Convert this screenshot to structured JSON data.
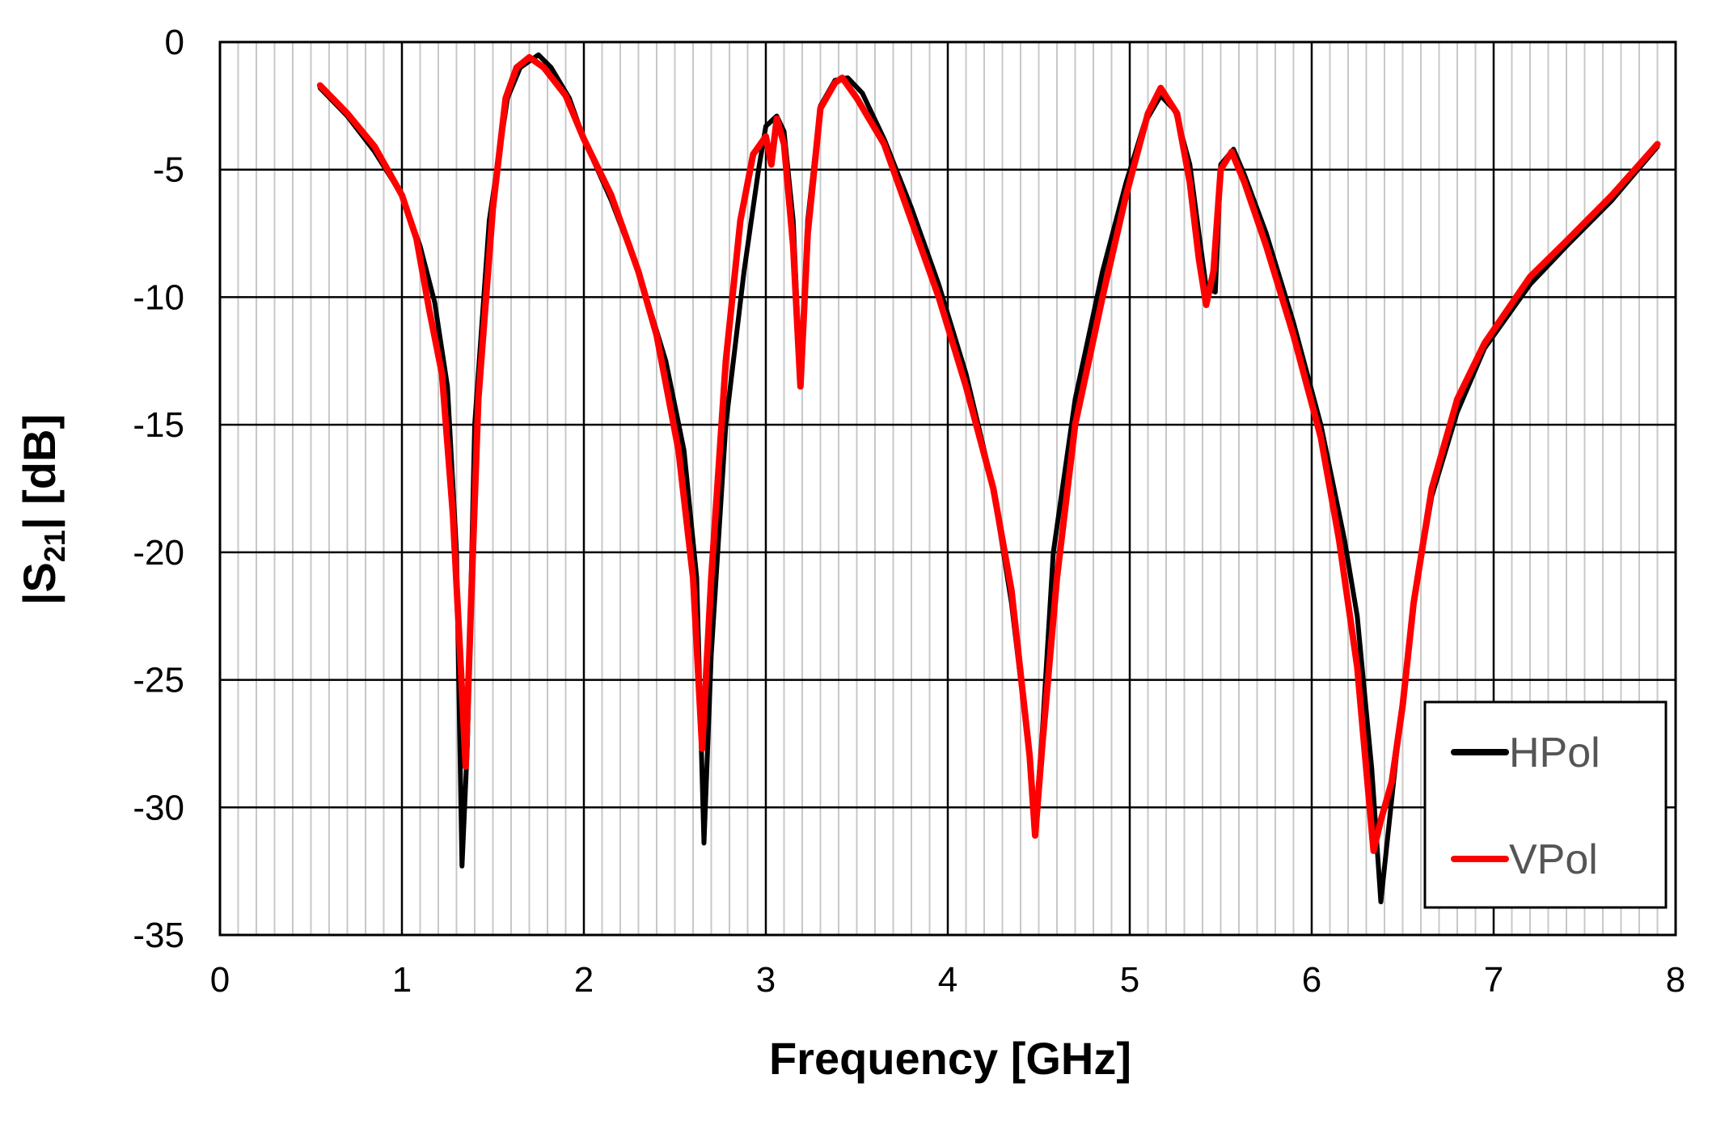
{
  "chart_data": {
    "type": "line",
    "xlabel": "Frequency [GHz]",
    "ylabel": {
      "prefix": "|S",
      "subscript": "21",
      "suffix": "| [dB]"
    },
    "xlim": [
      0,
      8
    ],
    "ylim": [
      -35,
      0
    ],
    "xticks": [
      "0",
      "1",
      "2",
      "3",
      "4",
      "5",
      "6",
      "7",
      "8"
    ],
    "yticks": [
      "0",
      "-5",
      "-10",
      "-15",
      "-20",
      "-25",
      "-30",
      "-35"
    ],
    "grid": true,
    "legend_position": "bottom-right",
    "series": [
      {
        "name": "HPol",
        "color": "#000000",
        "points": [
          [
            0.55,
            -1.8
          ],
          [
            0.7,
            -2.9
          ],
          [
            0.85,
            -4.3
          ],
          [
            1.0,
            -6.0
          ],
          [
            1.1,
            -8.0
          ],
          [
            1.18,
            -10.2
          ],
          [
            1.25,
            -13.5
          ],
          [
            1.3,
            -20.0
          ],
          [
            1.33,
            -32.3
          ],
          [
            1.36,
            -27.5
          ],
          [
            1.4,
            -15.0
          ],
          [
            1.48,
            -7.0
          ],
          [
            1.58,
            -2.2
          ],
          [
            1.65,
            -1.0
          ],
          [
            1.75,
            -0.5
          ],
          [
            1.82,
            -1.0
          ],
          [
            1.92,
            -2.2
          ],
          [
            2.0,
            -3.8
          ],
          [
            2.15,
            -6.2
          ],
          [
            2.3,
            -9.0
          ],
          [
            2.45,
            -12.5
          ],
          [
            2.55,
            -16.0
          ],
          [
            2.62,
            -21.0
          ],
          [
            2.66,
            -31.4
          ],
          [
            2.7,
            -24.0
          ],
          [
            2.78,
            -15.0
          ],
          [
            2.88,
            -9.0
          ],
          [
            2.96,
            -5.0
          ],
          [
            3.0,
            -3.3
          ],
          [
            3.06,
            -2.9
          ],
          [
            3.1,
            -3.5
          ],
          [
            3.15,
            -7.0
          ],
          [
            3.19,
            -13.3
          ],
          [
            3.23,
            -7.0
          ],
          [
            3.3,
            -2.5
          ],
          [
            3.38,
            -1.5
          ],
          [
            3.45,
            -1.4
          ],
          [
            3.53,
            -2.0
          ],
          [
            3.65,
            -3.8
          ],
          [
            3.8,
            -6.5
          ],
          [
            3.95,
            -9.5
          ],
          [
            4.1,
            -13.0
          ],
          [
            4.25,
            -17.5
          ],
          [
            4.35,
            -22.0
          ],
          [
            4.45,
            -28.0
          ],
          [
            4.48,
            -30.8
          ],
          [
            4.52,
            -27.0
          ],
          [
            4.58,
            -20.0
          ],
          [
            4.7,
            -14.0
          ],
          [
            4.85,
            -9.0
          ],
          [
            4.98,
            -5.5
          ],
          [
            5.08,
            -3.2
          ],
          [
            5.17,
            -2.1
          ],
          [
            5.25,
            -2.7
          ],
          [
            5.33,
            -4.8
          ],
          [
            5.38,
            -7.5
          ],
          [
            5.42,
            -9.6
          ],
          [
            5.47,
            -9.8
          ],
          [
            5.5,
            -4.8
          ],
          [
            5.57,
            -4.2
          ],
          [
            5.63,
            -5.2
          ],
          [
            5.75,
            -7.5
          ],
          [
            5.9,
            -11.0
          ],
          [
            6.05,
            -15.0
          ],
          [
            6.18,
            -19.5
          ],
          [
            6.25,
            -22.5
          ],
          [
            6.33,
            -28.5
          ],
          [
            6.38,
            -33.7
          ],
          [
            6.42,
            -31.0
          ],
          [
            6.48,
            -27.0
          ],
          [
            6.56,
            -22.0
          ],
          [
            6.66,
            -17.8
          ],
          [
            6.8,
            -14.5
          ],
          [
            6.95,
            -12.0
          ],
          [
            7.2,
            -9.5
          ],
          [
            7.4,
            -8.0
          ],
          [
            7.65,
            -6.2
          ],
          [
            7.9,
            -4.1
          ]
        ]
      },
      {
        "name": "VPol",
        "color": "#ff0000",
        "points": [
          [
            0.55,
            -1.7
          ],
          [
            0.7,
            -2.8
          ],
          [
            0.85,
            -4.1
          ],
          [
            1.0,
            -6.0
          ],
          [
            1.08,
            -7.7
          ],
          [
            1.15,
            -10.5
          ],
          [
            1.22,
            -13.0
          ],
          [
            1.28,
            -18.5
          ],
          [
            1.32,
            -24.0
          ],
          [
            1.35,
            -28.4
          ],
          [
            1.38,
            -22.0
          ],
          [
            1.42,
            -14.0
          ],
          [
            1.5,
            -6.5
          ],
          [
            1.57,
            -2.2
          ],
          [
            1.63,
            -1.0
          ],
          [
            1.7,
            -0.6
          ],
          [
            1.78,
            -1.0
          ],
          [
            1.9,
            -2.1
          ],
          [
            2.0,
            -3.8
          ],
          [
            2.15,
            -6.0
          ],
          [
            2.3,
            -9.0
          ],
          [
            2.4,
            -11.5
          ],
          [
            2.52,
            -16.0
          ],
          [
            2.6,
            -21.0
          ],
          [
            2.65,
            -27.7
          ],
          [
            2.7,
            -21.0
          ],
          [
            2.78,
            -12.5
          ],
          [
            2.86,
            -7.0
          ],
          [
            2.93,
            -4.4
          ],
          [
            2.97,
            -4.0
          ],
          [
            3.0,
            -3.7
          ],
          [
            3.03,
            -4.8
          ],
          [
            3.06,
            -3.0
          ],
          [
            3.1,
            -4.0
          ],
          [
            3.15,
            -8.0
          ],
          [
            3.19,
            -13.5
          ],
          [
            3.23,
            -7.5
          ],
          [
            3.3,
            -2.6
          ],
          [
            3.38,
            -1.6
          ],
          [
            3.42,
            -1.4
          ],
          [
            3.5,
            -2.2
          ],
          [
            3.65,
            -4.0
          ],
          [
            3.8,
            -7.0
          ],
          [
            3.95,
            -10.0
          ],
          [
            4.1,
            -13.5
          ],
          [
            4.25,
            -17.5
          ],
          [
            4.35,
            -21.5
          ],
          [
            4.45,
            -28.0
          ],
          [
            4.48,
            -31.1
          ],
          [
            4.52,
            -27.5
          ],
          [
            4.6,
            -21.0
          ],
          [
            4.7,
            -15.0
          ],
          [
            4.85,
            -10.0
          ],
          [
            4.98,
            -6.0
          ],
          [
            5.1,
            -2.8
          ],
          [
            5.17,
            -1.8
          ],
          [
            5.26,
            -2.8
          ],
          [
            5.33,
            -5.5
          ],
          [
            5.38,
            -8.5
          ],
          [
            5.42,
            -10.3
          ],
          [
            5.46,
            -9.0
          ],
          [
            5.5,
            -5.0
          ],
          [
            5.56,
            -4.3
          ],
          [
            5.63,
            -5.5
          ],
          [
            5.75,
            -8.0
          ],
          [
            5.9,
            -11.5
          ],
          [
            6.05,
            -15.5
          ],
          [
            6.15,
            -19.5
          ],
          [
            6.25,
            -24.5
          ],
          [
            6.3,
            -28.5
          ],
          [
            6.34,
            -31.7
          ],
          [
            6.38,
            -30.5
          ],
          [
            6.44,
            -29.0
          ],
          [
            6.5,
            -26.0
          ],
          [
            6.56,
            -22.0
          ],
          [
            6.66,
            -17.5
          ],
          [
            6.8,
            -14.0
          ],
          [
            6.95,
            -11.8
          ],
          [
            7.2,
            -9.2
          ],
          [
            7.4,
            -7.8
          ],
          [
            7.65,
            -6.0
          ],
          [
            7.9,
            -4.0
          ]
        ]
      }
    ]
  }
}
